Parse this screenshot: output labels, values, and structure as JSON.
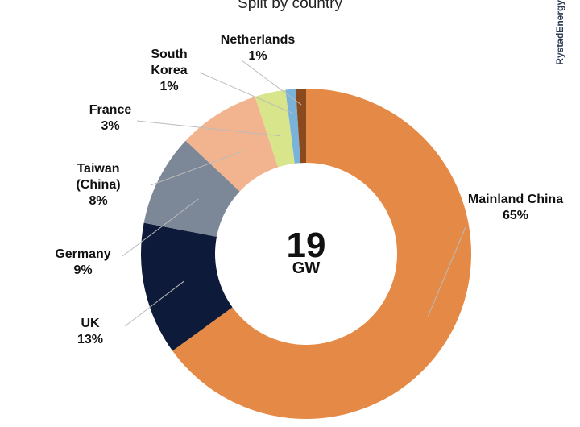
{
  "chart_data": {
    "type": "donut",
    "title": "Split by country",
    "brand": "RystadEnergy",
    "center_value": "19",
    "center_unit": "GW",
    "categories": [
      "Mainland China",
      "UK",
      "Germany",
      "Taiwan (China)",
      "France",
      "South Korea",
      "Netherlands"
    ],
    "values": [
      65,
      13,
      9,
      8,
      3,
      1,
      1
    ],
    "value_labels": [
      "65%",
      "13%",
      "9%",
      "8%",
      "3%",
      "1%",
      "1%"
    ],
    "colors": [
      "#e58a46",
      "#0d1a3a",
      "#7c8797",
      "#f2b48e",
      "#d9e58a",
      "#7ab3d9",
      "#8a4a1e"
    ]
  }
}
